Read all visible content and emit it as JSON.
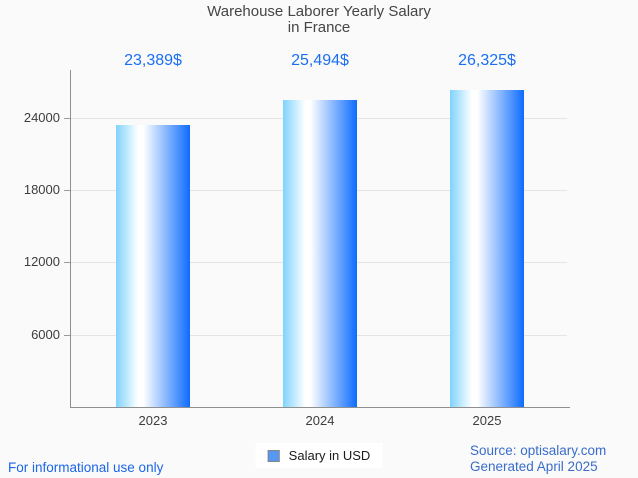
{
  "title": {
    "line1": "Warehouse Laborer Yearly Salary",
    "line2": "in France"
  },
  "chart_data": {
    "type": "bar",
    "title": "Warehouse Laborer Yearly Salary in France",
    "categories": [
      "2023",
      "2024",
      "2025"
    ],
    "series": [
      {
        "name": "Salary in USD",
        "values": [
          23389,
          25494,
          26325
        ],
        "value_labels": [
          "23,389$",
          "25,494$",
          "26,325$"
        ]
      }
    ],
    "xlabel": "",
    "ylabel": "",
    "yticks": [
      6000,
      12000,
      18000,
      24000
    ],
    "ytick_labels": [
      "6000",
      "12000",
      "18000",
      "24000"
    ],
    "ylim": [
      0,
      27900
    ],
    "grid": true,
    "legend_position": "bottom-center"
  },
  "legend": {
    "label": "Salary in USD"
  },
  "footer": {
    "disclaimer": "For informational use only",
    "source": "Source: optisalary.com",
    "generated": "Generated April 2025"
  },
  "colors": {
    "background": "#fafafa",
    "title_text": "#454545",
    "axis_line": "#8f8f8f",
    "gridline": "#e4e4e4",
    "tick_label": "#3d3d3d",
    "value_label": "#1a6ff2",
    "disclaimer_text": "#1b66e8",
    "source_text": "#3a6dc9",
    "legend_marker_fill": "#5799f2",
    "legend_marker_border": "#848484",
    "bar_gradient_left": "#7fd3fe",
    "bar_gradient_middle": "#ffffff",
    "bar_gradient_right": "#0d6cfd"
  }
}
